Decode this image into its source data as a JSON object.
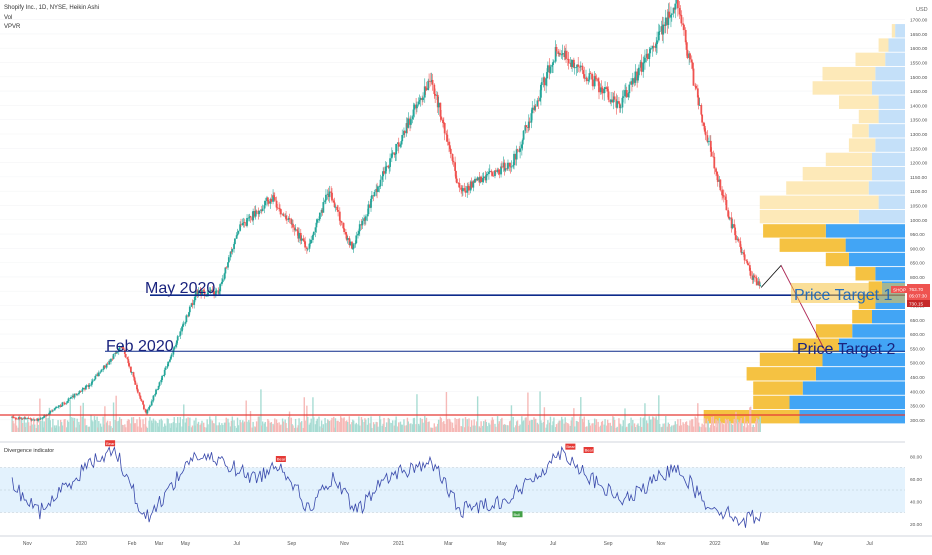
{
  "header": {
    "line1": "Shopify Inc., 1D, NYSE, Heikin Ashi",
    "line2": "Vol",
    "line3": "VPVR"
  },
  "currency": "USD",
  "price_badges": {
    "symbol": "SHOP",
    "last": "763.70",
    "countdown": "05:07:30",
    "level": "730.15"
  },
  "annotations": [
    {
      "text": "May 2020",
      "color": "#1a237e"
    },
    {
      "text": "Feb 2020",
      "color": "#1a237e"
    },
    {
      "text": "Price Target 1",
      "color": "#1565c0"
    },
    {
      "text": "Price Target 2",
      "color": "#1a237e"
    }
  ],
  "indicator": {
    "title": "Divergence indicator",
    "ticks": [
      "80.00",
      "60.00",
      "40.00",
      "20.00"
    ],
    "signals": [
      "Bear",
      "Bear",
      "Bull",
      "Bear",
      "Bear"
    ]
  },
  "colors": {
    "up": "#26a69a",
    "down": "#ef5350",
    "volume_up": "#a8dcd3",
    "volume_down": "#f6b9b7",
    "vpvr_value_up": "#f5c242",
    "vpvr_value_down": "#42a5f5",
    "vpvr_up": "#fde9b8",
    "vpvr_down": "#c4e0f9",
    "level_line": "#0d2a8a",
    "support_line": "#e53935",
    "rsi_line": "#3949ab",
    "rsi_band": "#e3f2fd"
  },
  "chart_data": {
    "type": "candlestick",
    "price_axis": {
      "ylim": [
        275,
        1725
      ],
      "ticks": [
        300,
        350,
        400,
        450,
        500,
        550,
        600,
        650,
        700,
        750,
        800,
        850,
        900,
        950,
        1000,
        1050,
        1100,
        1150,
        1200,
        1250,
        1300,
        1350,
        1400,
        1450,
        1500,
        1550,
        1600,
        1650,
        1700
      ]
    },
    "time_axis": {
      "labels": [
        "Nov",
        "2020",
        "Feb",
        "Mar",
        "May",
        "Jul",
        "Sep",
        "Nov",
        "2021",
        "Mar",
        "May",
        "Jul",
        "Sep",
        "Nov",
        "2022",
        "Mar",
        "May",
        "Jul"
      ]
    },
    "price_path": [
      {
        "date": "2019-10-15",
        "close": 310
      },
      {
        "date": "2019-11-15",
        "close": 300
      },
      {
        "date": "2019-12-15",
        "close": 360
      },
      {
        "date": "2020-01-15",
        "close": 430
      },
      {
        "date": "2020-02-19",
        "close": 560
      },
      {
        "date": "2020-03-18",
        "close": 320
      },
      {
        "date": "2020-04-15",
        "close": 520
      },
      {
        "date": "2020-05-15",
        "close": 745
      },
      {
        "date": "2020-06-10",
        "close": 745
      },
      {
        "date": "2020-07-01",
        "close": 960
      },
      {
        "date": "2020-08-10",
        "close": 1080
      },
      {
        "date": "2020-09-20",
        "close": 900
      },
      {
        "date": "2020-10-15",
        "close": 1100
      },
      {
        "date": "2020-11-10",
        "close": 900
      },
      {
        "date": "2020-12-15",
        "close": 1150
      },
      {
        "date": "2021-02-10",
        "close": 1500
      },
      {
        "date": "2021-03-15",
        "close": 1100
      },
      {
        "date": "2021-05-15",
        "close": 1200
      },
      {
        "date": "2021-07-05",
        "close": 1600
      },
      {
        "date": "2021-09-15",
        "close": 1400
      },
      {
        "date": "2021-11-20",
        "close": 1760
      },
      {
        "date": "2021-12-20",
        "close": 1350
      },
      {
        "date": "2022-01-20",
        "close": 1000
      },
      {
        "date": "2022-02-15",
        "close": 800
      },
      {
        "date": "2022-02-25",
        "close": 763
      }
    ],
    "horizontal_levels": [
      {
        "label": "May 2020",
        "price": 736
      },
      {
        "label": "Feb 2020",
        "price": 540
      },
      {
        "label": "",
        "price": 317
      }
    ],
    "projection": [
      {
        "date": "2022-02-25",
        "price": 763
      },
      {
        "date": "2022-03-20",
        "price": 840
      },
      {
        "date": "2022-05-10",
        "price": 540
      }
    ],
    "rsi": {
      "ylim": [
        10,
        90
      ],
      "band": [
        30,
        70
      ],
      "ticks": [
        80,
        60,
        40,
        20
      ],
      "path": [
        {
          "date": "2019-10-15",
          "value": 55
        },
        {
          "date": "2019-11-15",
          "value": 30
        },
        {
          "date": "2020-01-10",
          "value": 72
        },
        {
          "date": "2020-02-10",
          "value": 88
        },
        {
          "date": "2020-03-10",
          "value": 35
        },
        {
          "date": "2020-03-20",
          "value": 25
        },
        {
          "date": "2020-05-10",
          "value": 80
        },
        {
          "date": "2020-06-15",
          "value": 75
        },
        {
          "date": "2020-07-20",
          "value": 60
        },
        {
          "date": "2020-08-20",
          "value": 74
        },
        {
          "date": "2020-09-20",
          "value": 33
        },
        {
          "date": "2020-10-20",
          "value": 60
        },
        {
          "date": "2020-11-15",
          "value": 30
        },
        {
          "date": "2020-12-20",
          "value": 62
        },
        {
          "date": "2021-02-10",
          "value": 75
        },
        {
          "date": "2021-03-15",
          "value": 32
        },
        {
          "date": "2021-05-10",
          "value": 42
        },
        {
          "date": "2021-06-10",
          "value": 62
        },
        {
          "date": "2021-07-10",
          "value": 85
        },
        {
          "date": "2021-08-20",
          "value": 55
        },
        {
          "date": "2021-09-20",
          "value": 40
        },
        {
          "date": "2021-10-20",
          "value": 55
        },
        {
          "date": "2021-11-20",
          "value": 72
        },
        {
          "date": "2021-12-20",
          "value": 40
        },
        {
          "date": "2022-01-20",
          "value": 28
        },
        {
          "date": "2022-02-05",
          "value": 22
        },
        {
          "date": "2022-02-25",
          "value": 30
        }
      ]
    },
    "vpvr": [
      {
        "price": 310,
        "up": 58,
        "down": 64
      },
      {
        "price": 360,
        "up": 22,
        "down": 70
      },
      {
        "price": 410,
        "up": 30,
        "down": 62
      },
      {
        "price": 460,
        "up": 42,
        "down": 54
      },
      {
        "price": 510,
        "up": 38,
        "down": 50
      },
      {
        "price": 560,
        "up": 28,
        "down": 40
      },
      {
        "price": 610,
        "up": 22,
        "down": 32
      },
      {
        "price": 660,
        "up": 12,
        "down": 20
      },
      {
        "price": 710,
        "up": 10,
        "down": 18
      },
      {
        "price": 760,
        "up": 8,
        "down": 14
      },
      {
        "price": 810,
        "up": 12,
        "down": 18
      },
      {
        "price": 860,
        "up": 14,
        "down": 34
      },
      {
        "price": 910,
        "up": 40,
        "down": 36
      },
      {
        "price": 960,
        "up": 38,
        "down": 48
      },
      {
        "price": 1010,
        "up": 60,
        "down": 28
      },
      {
        "price": 1060,
        "up": 72,
        "down": 16
      },
      {
        "price": 1110,
        "up": 50,
        "down": 22
      },
      {
        "price": 1160,
        "up": 42,
        "down": 20
      },
      {
        "price": 1210,
        "up": 28,
        "down": 20
      },
      {
        "price": 1260,
        "up": 16,
        "down": 18
      },
      {
        "price": 1310,
        "up": 10,
        "down": 22
      },
      {
        "price": 1360,
        "up": 12,
        "down": 16
      },
      {
        "price": 1410,
        "up": 24,
        "down": 16
      },
      {
        "price": 1460,
        "up": 36,
        "down": 20
      },
      {
        "price": 1510,
        "up": 32,
        "down": 18
      },
      {
        "price": 1560,
        "up": 18,
        "down": 12
      },
      {
        "price": 1610,
        "up": 6,
        "down": 10
      },
      {
        "price": 1660,
        "up": 2,
        "down": 6
      }
    ]
  }
}
